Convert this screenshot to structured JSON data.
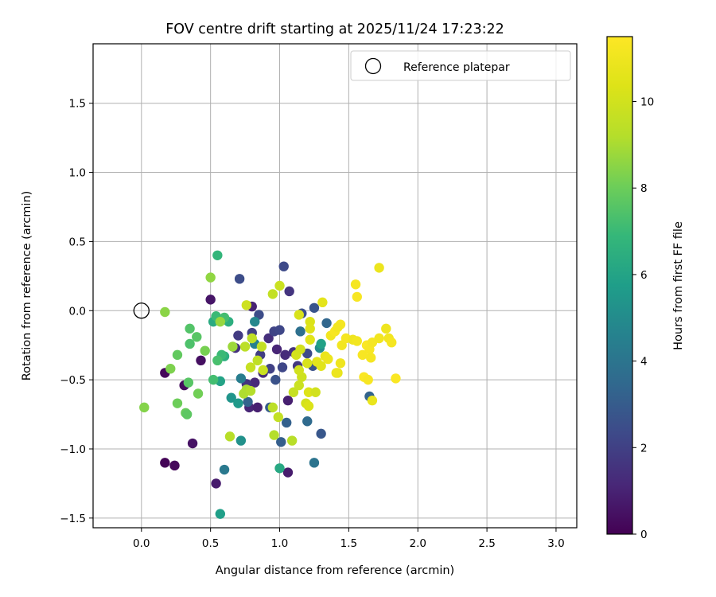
{
  "chart_data": {
    "type": "scatter",
    "title": "FOV centre drift starting at 2025/11/24 17:23:22",
    "xlabel": "Angular distance from reference (arcmin)",
    "ylabel": "Rotation from reference (arcmin)",
    "xlim": [
      -0.35,
      3.15
    ],
    "ylim": [
      -1.57,
      1.93
    ],
    "xticks": [
      0.0,
      0.5,
      1.0,
      1.5,
      2.0,
      2.5,
      3.0
    ],
    "xtick_labels": [
      "0.0",
      "0.5",
      "1.0",
      "1.5",
      "2.0",
      "2.5",
      "3.0"
    ],
    "yticks": [
      -1.5,
      -1.0,
      -0.5,
      0.0,
      0.5,
      1.0,
      1.5
    ],
    "ytick_labels": [
      "−1.5",
      "−1.0",
      "−0.5",
      "0.0",
      "0.5",
      "1.0",
      "1.5"
    ],
    "grid": true,
    "legend": {
      "position": "top-right",
      "entries": [
        "Reference platepar"
      ]
    },
    "reference_point": {
      "x": 0.0,
      "y": 0.0,
      "label": "Reference platepar"
    },
    "colorbar": {
      "label": "Hours from first FF file",
      "colormap": "viridis",
      "range": [
        0,
        11.5
      ],
      "ticks": [
        0,
        2,
        4,
        6,
        8,
        10
      ],
      "tick_labels": [
        "0",
        "2",
        "4",
        "6",
        "8",
        "10"
      ]
    },
    "points": [
      {
        "x": 0.17,
        "y": -0.45,
        "t": 0.2
      },
      {
        "x": 0.17,
        "y": -1.1,
        "t": 0.1
      },
      {
        "x": 0.24,
        "y": -1.12,
        "t": 0.2
      },
      {
        "x": 0.31,
        "y": -0.54,
        "t": 0.3
      },
      {
        "x": 0.37,
        "y": -0.96,
        "t": 0.5
      },
      {
        "x": 0.43,
        "y": -0.36,
        "t": 0.4
      },
      {
        "x": 0.5,
        "y": 0.08,
        "t": 0.6
      },
      {
        "x": 0.54,
        "y": -1.25,
        "t": 0.8
      },
      {
        "x": 0.8,
        "y": 0.03,
        "t": 1.0
      },
      {
        "x": 0.78,
        "y": -0.7,
        "t": 1.1
      },
      {
        "x": 0.82,
        "y": -0.52,
        "t": 1.2
      },
      {
        "x": 0.84,
        "y": -0.7,
        "t": 0.9
      },
      {
        "x": 0.88,
        "y": -0.45,
        "t": 1.3
      },
      {
        "x": 0.92,
        "y": -0.2,
        "t": 1.4
      },
      {
        "x": 0.98,
        "y": -0.28,
        "t": 1.1
      },
      {
        "x": 1.06,
        "y": -1.17,
        "t": 0.8
      },
      {
        "x": 1.06,
        "y": -0.65,
        "t": 0.9
      },
      {
        "x": 1.07,
        "y": 0.14,
        "t": 1.6
      },
      {
        "x": 1.1,
        "y": -0.3,
        "t": 1.5
      },
      {
        "x": 1.13,
        "y": -0.4,
        "t": 1.7
      },
      {
        "x": 1.04,
        "y": -0.32,
        "t": 1.3
      },
      {
        "x": 0.7,
        "y": -0.18,
        "t": 1.8
      },
      {
        "x": 0.68,
        "y": -0.27,
        "t": 1.5
      },
      {
        "x": 0.76,
        "y": -0.53,
        "t": 1.6
      },
      {
        "x": 0.86,
        "y": -0.32,
        "t": 1.9
      },
      {
        "x": 0.93,
        "y": -0.42,
        "t": 2.0
      },
      {
        "x": 0.96,
        "y": -0.15,
        "t": 2.1
      },
      {
        "x": 1.02,
        "y": -0.41,
        "t": 2.2
      },
      {
        "x": 1.03,
        "y": 0.32,
        "t": 2.3
      },
      {
        "x": 0.71,
        "y": 0.23,
        "t": 2.4
      },
      {
        "x": 1.0,
        "y": -0.14,
        "t": 2.2
      },
      {
        "x": 1.16,
        "y": -0.02,
        "t": 2.5
      },
      {
        "x": 1.2,
        "y": -0.31,
        "t": 2.3
      },
      {
        "x": 1.24,
        "y": -0.4,
        "t": 2.6
      },
      {
        "x": 1.25,
        "y": 0.02,
        "t": 2.7
      },
      {
        "x": 1.3,
        "y": -0.89,
        "t": 2.8
      },
      {
        "x": 0.8,
        "y": -0.16,
        "t": 2.0
      },
      {
        "x": 0.85,
        "y": -0.03,
        "t": 2.4
      },
      {
        "x": 0.97,
        "y": -0.5,
        "t": 2.6
      },
      {
        "x": 0.93,
        "y": -0.7,
        "t": 3.0
      },
      {
        "x": 1.01,
        "y": -0.95,
        "t": 3.1
      },
      {
        "x": 1.05,
        "y": -0.81,
        "t": 3.2
      },
      {
        "x": 0.77,
        "y": -0.66,
        "t": 3.3
      },
      {
        "x": 1.34,
        "y": -0.09,
        "t": 3.4
      },
      {
        "x": 1.65,
        "y": -0.62,
        "t": 3.3
      },
      {
        "x": 1.2,
        "y": -0.8,
        "t": 3.6
      },
      {
        "x": 1.15,
        "y": -0.15,
        "t": 3.8
      },
      {
        "x": 1.25,
        "y": -1.1,
        "t": 4.0
      },
      {
        "x": 0.6,
        "y": -1.15,
        "t": 4.2
      },
      {
        "x": 0.72,
        "y": -0.49,
        "t": 4.4
      },
      {
        "x": 0.82,
        "y": -0.24,
        "t": 4.5
      },
      {
        "x": 0.82,
        "y": -0.08,
        "t": 4.8
      },
      {
        "x": 1.29,
        "y": -0.27,
        "t": 5.0
      },
      {
        "x": 0.72,
        "y": -0.94,
        "t": 5.2
      },
      {
        "x": 0.65,
        "y": -0.63,
        "t": 5.4
      },
      {
        "x": 0.7,
        "y": -0.67,
        "t": 5.6
      },
      {
        "x": 0.57,
        "y": -1.47,
        "t": 5.8
      },
      {
        "x": 1.3,
        "y": -0.24,
        "t": 5.9
      },
      {
        "x": 1.0,
        "y": -1.14,
        "t": 6.2
      },
      {
        "x": 0.57,
        "y": -0.51,
        "t": 6.0
      },
      {
        "x": 0.52,
        "y": -0.08,
        "t": 6.3
      },
      {
        "x": 0.63,
        "y": -0.08,
        "t": 6.5
      },
      {
        "x": 0.6,
        "y": -0.33,
        "t": 6.5
      },
      {
        "x": 0.55,
        "y": 0.4,
        "t": 6.8
      },
      {
        "x": 0.54,
        "y": -0.04,
        "t": 7.0
      },
      {
        "x": 0.6,
        "y": -0.05,
        "t": 7.2
      },
      {
        "x": 0.58,
        "y": -0.32,
        "t": 7.0
      },
      {
        "x": 0.55,
        "y": -0.36,
        "t": 7.3
      },
      {
        "x": 0.52,
        "y": -0.5,
        "t": 7.2
      },
      {
        "x": 0.35,
        "y": -0.13,
        "t": 7.5
      },
      {
        "x": 0.35,
        "y": -0.24,
        "t": 7.4
      },
      {
        "x": 0.4,
        "y": -0.19,
        "t": 7.6
      },
      {
        "x": 0.26,
        "y": -0.32,
        "t": 7.8
      },
      {
        "x": 0.34,
        "y": -0.52,
        "t": 7.6
      },
      {
        "x": 0.32,
        "y": -0.74,
        "t": 7.9
      },
      {
        "x": 0.33,
        "y": -0.75,
        "t": 7.7
      },
      {
        "x": 0.26,
        "y": -0.67,
        "t": 8.0
      },
      {
        "x": 0.41,
        "y": -0.6,
        "t": 8.1
      },
      {
        "x": 0.46,
        "y": -0.29,
        "t": 8.2
      },
      {
        "x": 0.21,
        "y": -0.42,
        "t": 8.3
      },
      {
        "x": 0.02,
        "y": -0.7,
        "t": 8.4
      },
      {
        "x": 0.17,
        "y": -0.01,
        "t": 8.5
      },
      {
        "x": 0.5,
        "y": 0.24,
        "t": 8.6
      },
      {
        "x": 0.57,
        "y": -0.08,
        "t": 8.7
      },
      {
        "x": 0.66,
        "y": -0.26,
        "t": 8.8
      },
      {
        "x": 0.76,
        "y": -0.57,
        "t": 9.0
      },
      {
        "x": 0.74,
        "y": -0.6,
        "t": 9.1
      },
      {
        "x": 0.79,
        "y": -0.58,
        "t": 9.2
      },
      {
        "x": 0.64,
        "y": -0.91,
        "t": 9.3
      },
      {
        "x": 0.75,
        "y": -0.26,
        "t": 9.4
      },
      {
        "x": 0.8,
        "y": -0.2,
        "t": 9.5
      },
      {
        "x": 0.84,
        "y": -0.36,
        "t": 9.5
      },
      {
        "x": 0.87,
        "y": -0.26,
        "t": 9.6
      },
      {
        "x": 0.79,
        "y": -0.41,
        "t": 9.7
      },
      {
        "x": 0.88,
        "y": -0.43,
        "t": 9.8
      },
      {
        "x": 0.76,
        "y": 0.04,
        "t": 9.9
      },
      {
        "x": 0.95,
        "y": 0.12,
        "t": 9.6
      },
      {
        "x": 1.0,
        "y": 0.18,
        "t": 9.8
      },
      {
        "x": 0.95,
        "y": -0.7,
        "t": 9.4
      },
      {
        "x": 0.99,
        "y": -0.77,
        "t": 9.6
      },
      {
        "x": 0.96,
        "y": -0.9,
        "t": 9.2
      },
      {
        "x": 1.09,
        "y": -0.94,
        "t": 9.3
      },
      {
        "x": 1.1,
        "y": -0.59,
        "t": 9.7
      },
      {
        "x": 1.14,
        "y": -0.54,
        "t": 9.8
      },
      {
        "x": 1.16,
        "y": -0.48,
        "t": 9.9
      },
      {
        "x": 1.14,
        "y": -0.43,
        "t": 10.0
      },
      {
        "x": 1.12,
        "y": -0.32,
        "t": 10.1
      },
      {
        "x": 1.15,
        "y": -0.28,
        "t": 10.0
      },
      {
        "x": 1.14,
        "y": -0.03,
        "t": 10.2
      },
      {
        "x": 1.22,
        "y": -0.08,
        "t": 10.3
      },
      {
        "x": 1.22,
        "y": -0.13,
        "t": 10.4
      },
      {
        "x": 1.22,
        "y": -0.21,
        "t": 10.5
      },
      {
        "x": 1.2,
        "y": -0.38,
        "t": 10.2
      },
      {
        "x": 1.19,
        "y": -0.67,
        "t": 10.1
      },
      {
        "x": 1.21,
        "y": -0.69,
        "t": 10.3
      },
      {
        "x": 1.21,
        "y": -0.59,
        "t": 10.4
      },
      {
        "x": 1.26,
        "y": -0.59,
        "t": 10.0
      },
      {
        "x": 1.27,
        "y": -0.37,
        "t": 10.6
      },
      {
        "x": 1.3,
        "y": -0.4,
        "t": 10.5
      },
      {
        "x": 1.31,
        "y": 0.06,
        "t": 10.6
      },
      {
        "x": 1.33,
        "y": -0.33,
        "t": 10.8
      },
      {
        "x": 1.35,
        "y": -0.35,
        "t": 10.9
      },
      {
        "x": 1.42,
        "y": -0.45,
        "t": 10.7
      },
      {
        "x": 1.41,
        "y": -0.45,
        "t": 10.9
      },
      {
        "x": 1.44,
        "y": -0.38,
        "t": 11.0
      },
      {
        "x": 1.45,
        "y": -0.25,
        "t": 11.1
      },
      {
        "x": 1.48,
        "y": -0.2,
        "t": 11.2
      },
      {
        "x": 1.37,
        "y": -0.18,
        "t": 11.1
      },
      {
        "x": 1.4,
        "y": -0.15,
        "t": 11.3
      },
      {
        "x": 1.44,
        "y": -0.1,
        "t": 11.2
      },
      {
        "x": 1.42,
        "y": -0.12,
        "t": 11.1
      },
      {
        "x": 1.55,
        "y": 0.19,
        "t": 11.2
      },
      {
        "x": 1.56,
        "y": 0.1,
        "t": 11.3
      },
      {
        "x": 1.53,
        "y": -0.21,
        "t": 11.0
      },
      {
        "x": 1.56,
        "y": -0.22,
        "t": 11.1
      },
      {
        "x": 1.6,
        "y": -0.32,
        "t": 11.3
      },
      {
        "x": 1.63,
        "y": -0.25,
        "t": 11.4
      },
      {
        "x": 1.65,
        "y": -0.28,
        "t": 11.3
      },
      {
        "x": 1.66,
        "y": -0.34,
        "t": 11.2
      },
      {
        "x": 1.61,
        "y": -0.48,
        "t": 11.4
      },
      {
        "x": 1.64,
        "y": -0.5,
        "t": 11.3
      },
      {
        "x": 1.67,
        "y": -0.23,
        "t": 11.2
      },
      {
        "x": 1.72,
        "y": -0.2,
        "t": 11.1
      },
      {
        "x": 1.77,
        "y": -0.13,
        "t": 11.0
      },
      {
        "x": 1.79,
        "y": -0.2,
        "t": 11.1
      },
      {
        "x": 1.81,
        "y": -0.23,
        "t": 11.2
      },
      {
        "x": 1.84,
        "y": -0.49,
        "t": 11.4
      },
      {
        "x": 1.72,
        "y": 0.31,
        "t": 10.9
      },
      {
        "x": 1.67,
        "y": -0.65,
        "t": 10.8
      }
    ]
  }
}
